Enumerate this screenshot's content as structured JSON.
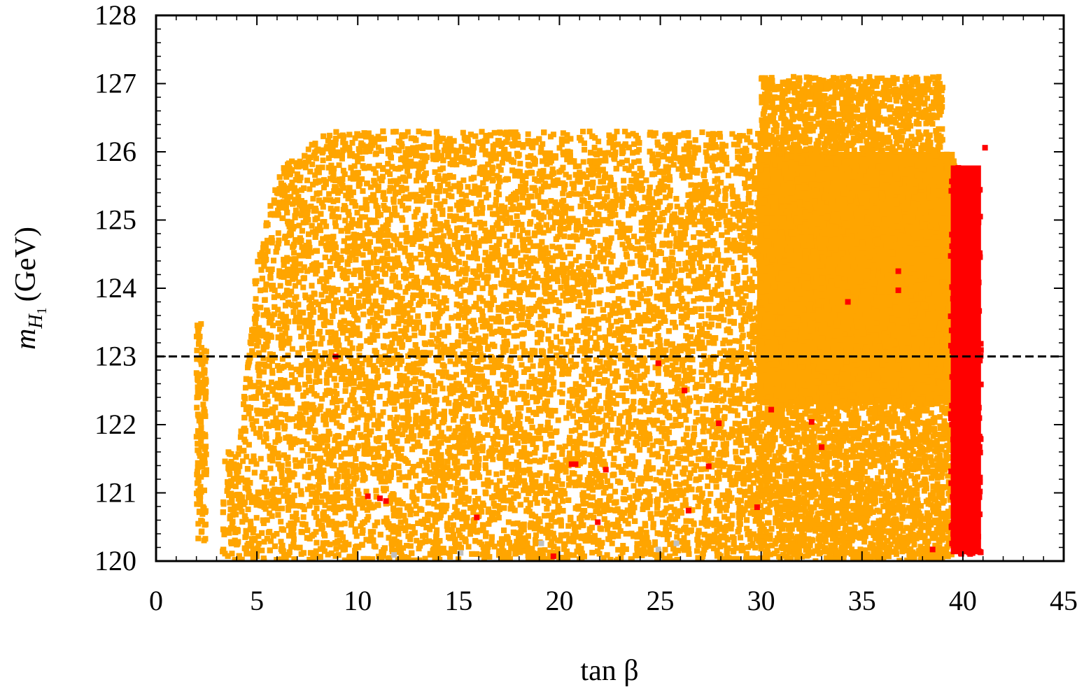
{
  "chart_data": {
    "type": "scatter",
    "xlabel": "tan β",
    "ylabel": "m_{H_1} (GeV)",
    "ylabel_parts": {
      "symbol": "m",
      "sub": "H",
      "subsub": "1",
      "unit": "(GeV)"
    },
    "xlim": [
      0,
      45
    ],
    "ylim": [
      120,
      128
    ],
    "xticks": [
      0,
      5,
      10,
      15,
      20,
      25,
      30,
      35,
      40,
      45
    ],
    "yticks": [
      120,
      121,
      122,
      123,
      124,
      125,
      126,
      127,
      128
    ],
    "grid": false,
    "reference_line": {
      "y": 123,
      "style": "dashed",
      "color": "#000000"
    },
    "series": [
      {
        "color": "#ffa500",
        "marker": "square",
        "regions": [
          {
            "x_range": [
              3.3,
              30
            ],
            "y_range": [
              120,
              126.3
            ],
            "upper_edge_y": [
              [
                4,
                121.6
              ],
              [
                5,
                124.4
              ],
              [
                6,
                125.7
              ],
              [
                8,
                126.2
              ],
              [
                10,
                126.6
              ],
              [
                14,
                126.9
              ],
              [
                19,
                127.0
              ],
              [
                25,
                127.2
              ],
              [
                30,
                126.9
              ]
            ],
            "density": "sparse"
          },
          {
            "x_range": [
              29.8,
              39.6
            ],
            "y_range": [
              122.3,
              126.0
            ],
            "density": "dense"
          },
          {
            "x_range": [
              29.8,
              39.6
            ],
            "y_range": [
              120,
              122.4
            ],
            "density": "sparse"
          },
          {
            "x_range": [
              30,
              39
            ],
            "y_range": [
              126,
              127.1
            ],
            "density": "sparse"
          },
          {
            "x_range": [
              2.0,
              2.5
            ],
            "y_range": [
              120.3,
              123.5
            ],
            "density": "sparse"
          }
        ]
      },
      {
        "color": "#ff0000",
        "marker": "square",
        "regions": [
          {
            "x_range": [
              39.4,
              40.9
            ],
            "y_range": [
              120.1,
              125.8
            ],
            "density": "dense"
          }
        ],
        "points": [
          [
            8.9,
            123.0
          ],
          [
            10.5,
            120.95
          ],
          [
            11.1,
            120.92
          ],
          [
            11.4,
            120.88
          ],
          [
            15.9,
            120.64
          ],
          [
            19.7,
            120.07
          ],
          [
            20.6,
            121.42
          ],
          [
            20.8,
            121.42
          ],
          [
            21.9,
            120.57
          ],
          [
            22.3,
            121.34
          ],
          [
            24.9,
            122.9
          ],
          [
            26.2,
            122.5
          ],
          [
            26.4,
            120.74
          ],
          [
            27.4,
            121.39
          ],
          [
            27.9,
            122.02
          ],
          [
            29.8,
            120.79
          ],
          [
            30.5,
            122.22
          ],
          [
            32.5,
            122.04
          ],
          [
            33.0,
            121.67
          ],
          [
            34.3,
            123.8
          ],
          [
            36.8,
            124.25
          ],
          [
            36.8,
            123.97
          ],
          [
            38.5,
            120.17
          ],
          [
            41.1,
            126.06
          ]
        ]
      },
      {
        "color": "#c0c0c0",
        "marker": "square",
        "points": [
          [
            11.8,
            120.09
          ],
          [
            15.1,
            120.12
          ],
          [
            19.1,
            120.26
          ],
          [
            24.9,
            120.17
          ],
          [
            25.8,
            120.26
          ]
        ]
      }
    ]
  }
}
